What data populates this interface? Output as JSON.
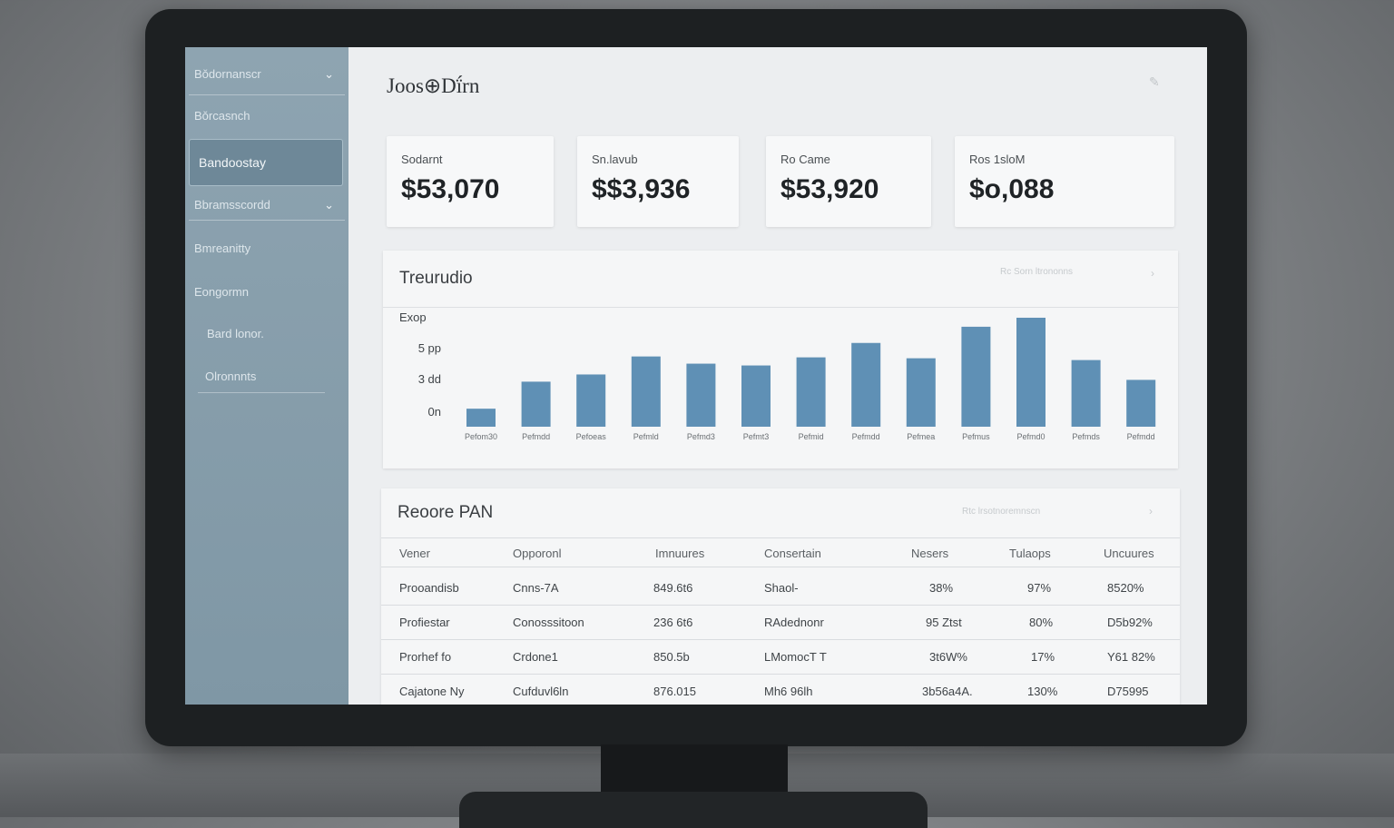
{
  "app": {
    "title": "Joos⊕Dḯrn"
  },
  "sidebar": {
    "items": [
      {
        "label": "Bǒdornanscr",
        "has_chevron": true
      },
      {
        "label": "Bǒrcasnch",
        "has_chevron": false
      },
      {
        "label": "Bandoostay",
        "has_chevron": false,
        "active": true
      },
      {
        "label": "Bbramsscordd",
        "has_chevron": true
      },
      {
        "label": "Bmreanitty",
        "has_chevron": false
      },
      {
        "label": "Eongormn",
        "has_chevron": false
      },
      {
        "label": "Bard lonor.",
        "has_chevron": false
      },
      {
        "label": "Olronnnts",
        "has_chevron": false
      }
    ]
  },
  "kpis": [
    {
      "label": "Sodarnt",
      "value": "$53,070"
    },
    {
      "label": "Sn.lavub",
      "value": "$$3,936"
    },
    {
      "label": "Ro Came",
      "value": "$53,920"
    },
    {
      "label": "Ros 1sloM",
      "value": "$o,088"
    }
  ],
  "chart": {
    "title": "Treurudio",
    "hint": "Rc Sorn ltrononns",
    "chart_data": {
      "type": "bar",
      "title": "Treurudio",
      "ylabel": "Exop",
      "ytick_labels": [
        "5 pp",
        "3 dd",
        "0n"
      ],
      "categories": [
        "Pefom30",
        "Pefmdd",
        "Pefoeas",
        "Pefmld",
        "Pefmd3",
        "Pefmt3",
        "Pefmid",
        "Pefmdd",
        "Pefmea",
        "Pefmus",
        "Pefmd0",
        "Pefmds",
        "Pefmdd"
      ],
      "values": [
        20,
        50,
        58,
        78,
        70,
        68,
        77,
        93,
        76,
        111,
        121,
        74,
        52
      ],
      "ylim": [
        0,
        125
      ]
    }
  },
  "table": {
    "title": "Reoore PAN",
    "hint": "Rtc lrsotnoremnscn",
    "columns": [
      "Vener",
      "Opporonl",
      "Imnuures",
      "Consertain",
      "Nesers",
      "Tulaops",
      "Uncuures"
    ],
    "rows": [
      [
        "Prooandisb",
        "Cnns-7A",
        "849.6t6",
        "Shaol-",
        "38%",
        "97%",
        "8520%"
      ],
      [
        "Profiestar",
        "Conosssitoon",
        "236 6t6",
        "RAdednonr",
        "95 Ztst",
        "80%",
        "D5b92%"
      ],
      [
        "Prorhef fo",
        "Crdone1",
        "850.5b",
        "LMomocT T",
        "3t6W%",
        "17%",
        "Y61 82%"
      ],
      [
        "Cajatone Ny",
        "Cufduvl6ln",
        "876.015",
        "Mh6 96lh",
        "3b56a4A.",
        "130%",
        "D75995"
      ]
    ]
  }
}
